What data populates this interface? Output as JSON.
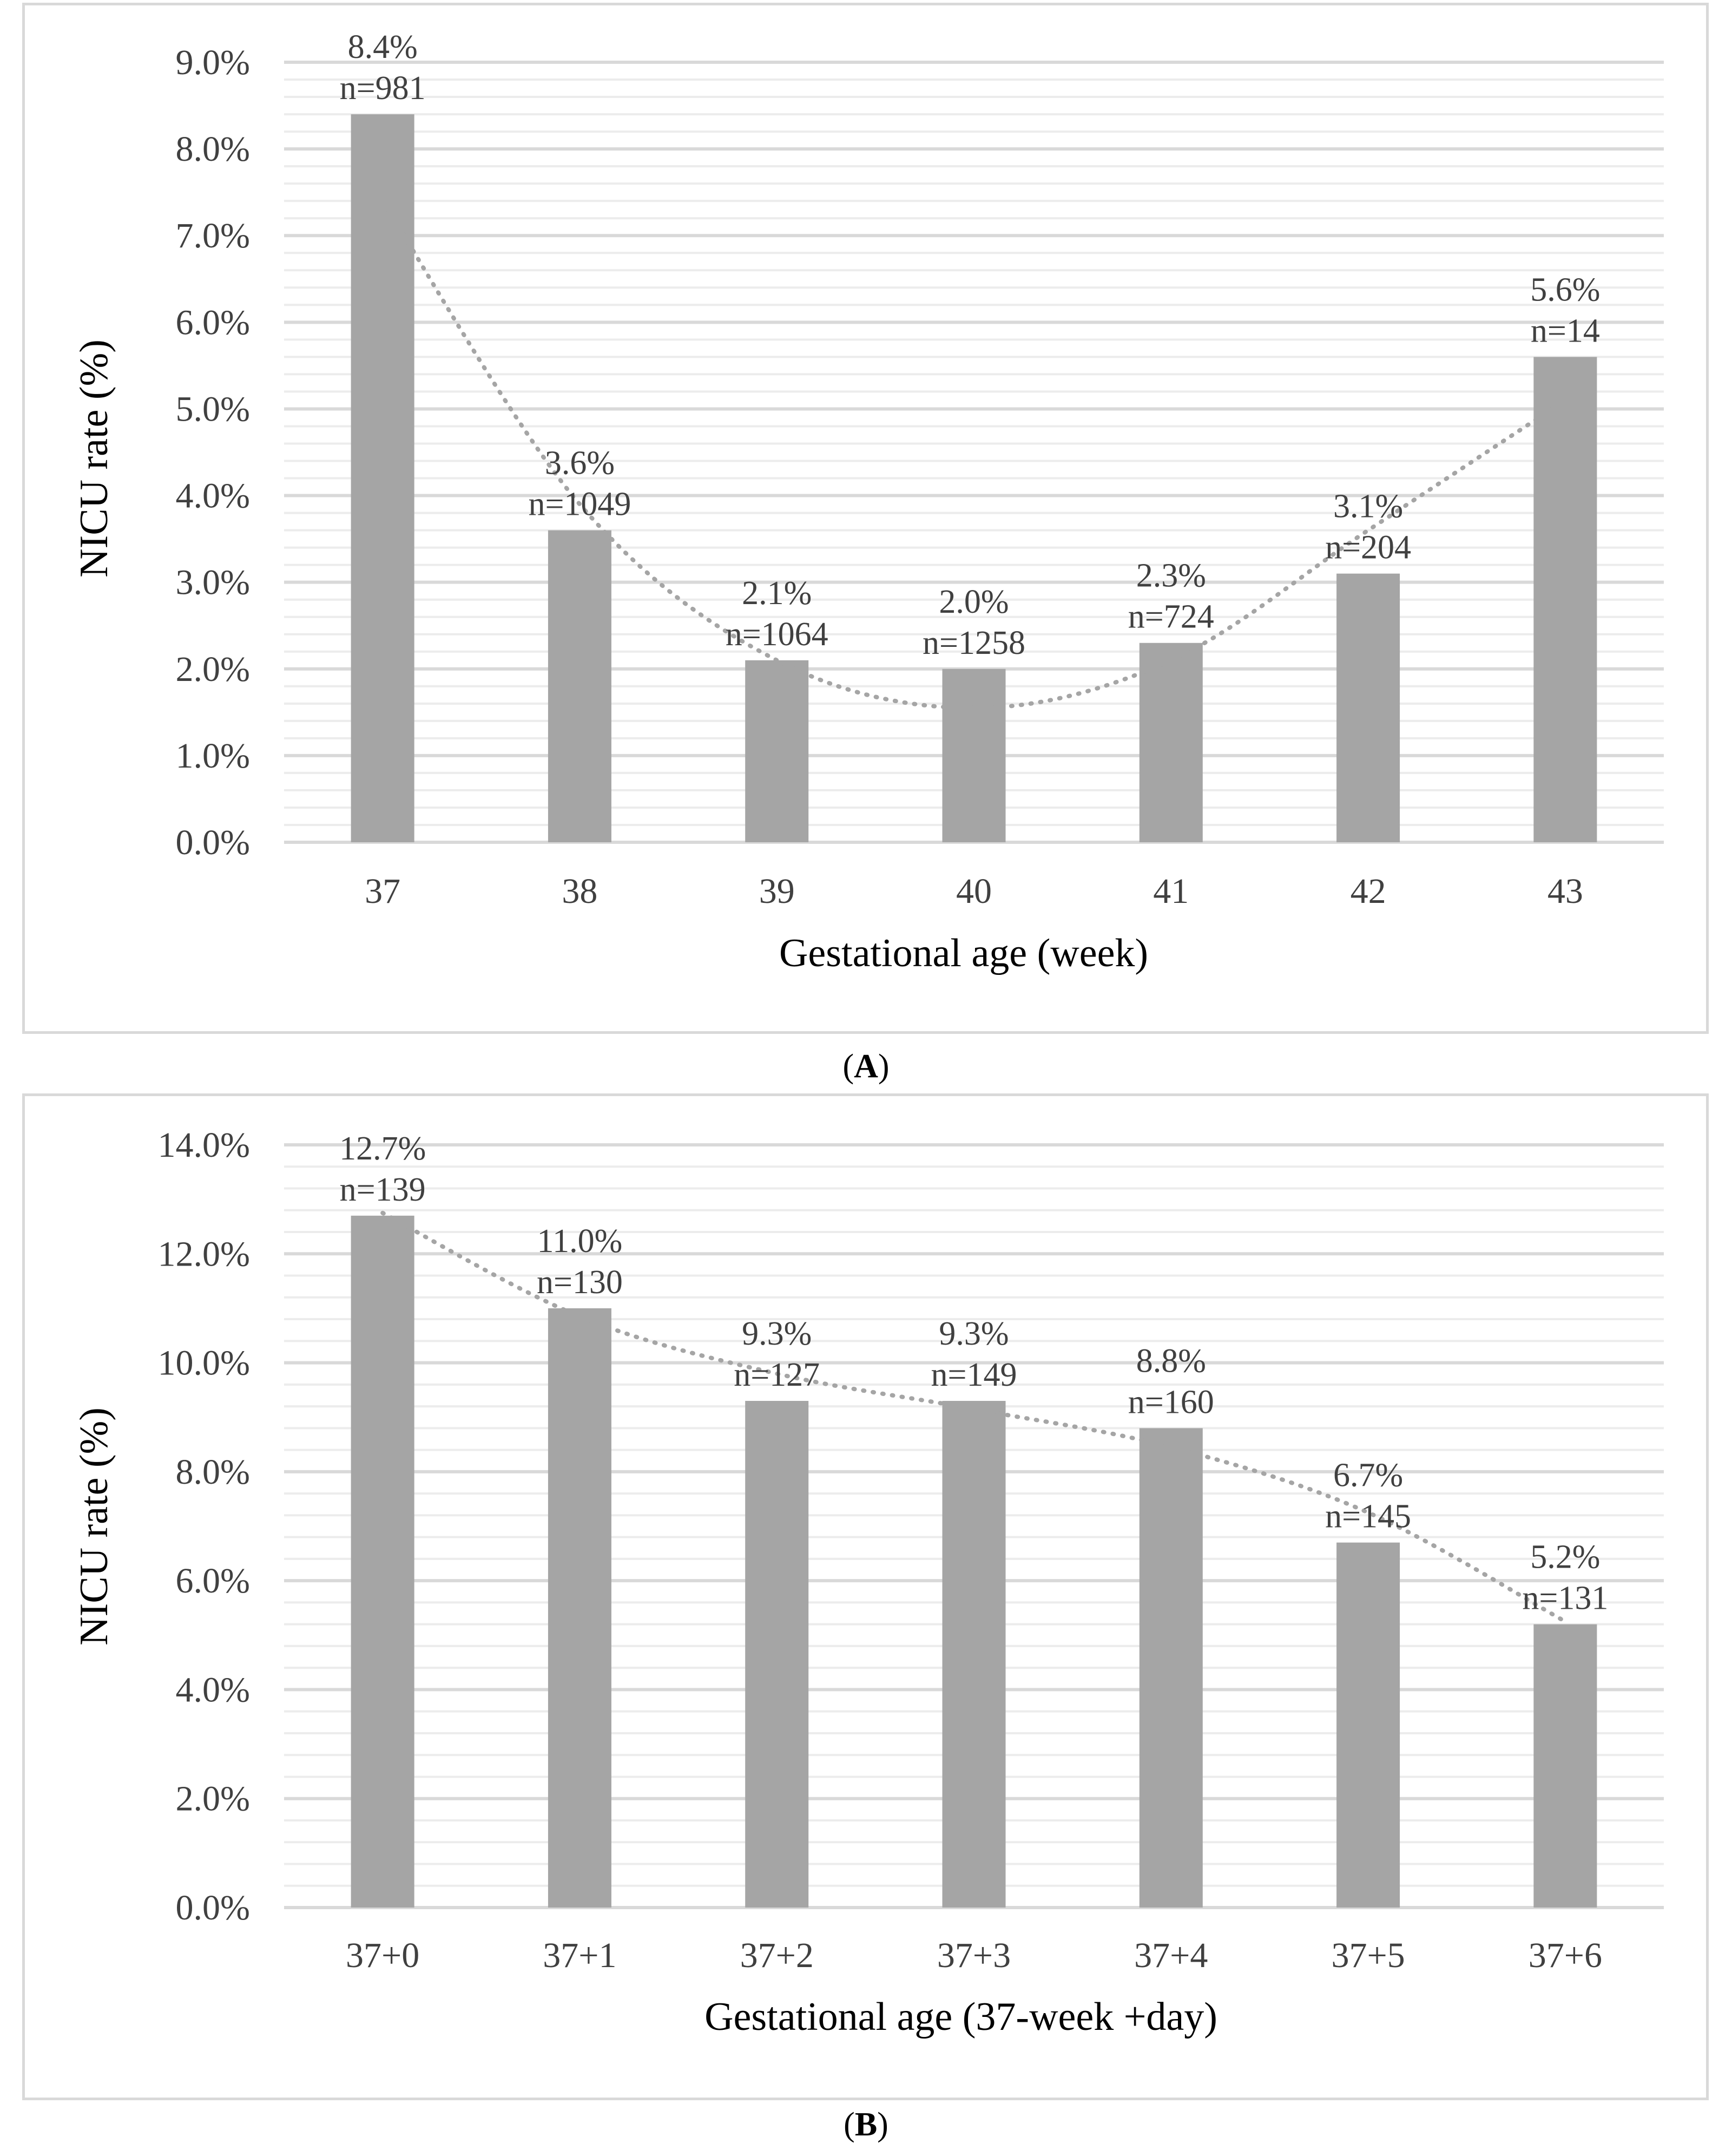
{
  "chart_data": [
    {
      "type": "bar",
      "panel_label": "A",
      "categories": [
        "37",
        "38",
        "39",
        "40",
        "41",
        "42",
        "43"
      ],
      "values": [
        8.4,
        3.6,
        2.1,
        2.0,
        2.3,
        3.1,
        5.6
      ],
      "data_labels": [
        "8.4%",
        "3.6%",
        "2.1%",
        "2.0%",
        "2.3%",
        "3.1%",
        "5.6%"
      ],
      "n_labels": [
        "n=981",
        "n=1049",
        "n=1064",
        "n=1258",
        "n=724",
        "n=204",
        "n=14"
      ],
      "trendline": {
        "type": "polynomial",
        "style": "dotted",
        "values": [
          7.4,
          3.9,
          2.1,
          1.55,
          2.1,
          3.6,
          5.1
        ]
      },
      "yticks": [
        "0.0%",
        "1.0%",
        "2.0%",
        "3.0%",
        "4.0%",
        "5.0%",
        "6.0%",
        "7.0%",
        "8.0%",
        "9.0%"
      ],
      "ylim": [
        0,
        9
      ],
      "xlabel": "Gestational age (week)",
      "ylabel": "NICU rate (%)",
      "grid": true
    },
    {
      "type": "bar",
      "panel_label": "B",
      "categories": [
        "37+0",
        "37+1",
        "37+2",
        "37+3",
        "37+4",
        "37+5",
        "37+6"
      ],
      "values": [
        12.7,
        11.0,
        9.3,
        9.3,
        8.8,
        6.7,
        5.2
      ],
      "data_labels": [
        "12.7%",
        "11.0%",
        "9.3%",
        "9.3%",
        "8.8%",
        "6.7%",
        "5.2%"
      ],
      "n_labels": [
        "n=139",
        "n=130",
        "n=127",
        "n=149",
        "n=160",
        "n=145",
        "n=131"
      ],
      "trendline": {
        "type": "polynomial",
        "style": "dotted",
        "values": [
          12.75,
          10.85,
          9.8,
          9.15,
          8.45,
          7.25,
          5.25
        ]
      },
      "yticks": [
        "0.0%",
        "2.0%",
        "4.0%",
        "6.0%",
        "8.0%",
        "10.0%",
        "12.0%",
        "14.0%"
      ],
      "ylim": [
        0,
        14
      ],
      "xlabel": "Gestational age (37-week +day)",
      "ylabel": "NICU rate (%)",
      "grid": true
    }
  ],
  "captions": {
    "a": "A",
    "b": "B"
  },
  "colors": {
    "bar": "#a5a5a5",
    "trend": "#a5a5a5",
    "grid_major": "#d9d9d9",
    "grid_minor": "#ececec",
    "text": "#404040"
  }
}
